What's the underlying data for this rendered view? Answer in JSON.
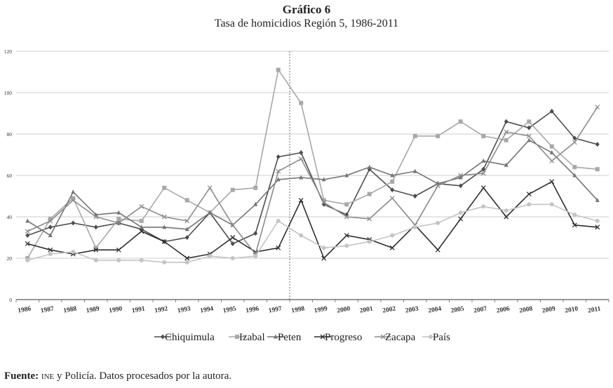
{
  "header": {
    "title": "Gráfico 6",
    "subtitle": "Tasa de homicidios Región 5, 1986-2011"
  },
  "source": {
    "label": "Fuente:",
    "org": "INE",
    "text": " y Policía. Datos procesados por la autora."
  },
  "chart_data": {
    "type": "line",
    "title": "Tasa de homicidios Región 5, 1986-2011",
    "xlabel": "",
    "ylabel": "",
    "ylim": [
      0,
      120
    ],
    "yticks": [
      0,
      20,
      40,
      60,
      80,
      100,
      120
    ],
    "grid": "horizontal",
    "legend_position": "bottom",
    "reference_line_category": "1997",
    "categories": [
      "1986",
      "1987",
      "1988",
      "1989",
      "1990",
      "1991",
      "1992",
      "1993",
      "1994",
      "1995",
      "1996",
      "1997",
      "1998",
      "1999",
      "2000",
      "2001",
      "2002",
      "2003",
      "2004",
      "2005",
      "2007",
      "2006",
      "2008",
      "2009",
      "2010",
      "2011"
    ],
    "series": [
      {
        "name": "Chiquimula",
        "marker": "diamond",
        "color": "#4d4d4d",
        "values": [
          31,
          35,
          37,
          35,
          37,
          34,
          28,
          30,
          42,
          27,
          32,
          69,
          71,
          46,
          41,
          63,
          53,
          50,
          56,
          55,
          63,
          86,
          83,
          91,
          78,
          75
        ]
      },
      {
        "name": "Izabal",
        "marker": "square",
        "color": "#a8a8a8",
        "values": [
          20,
          39,
          49,
          25,
          39,
          38,
          54,
          48,
          42,
          53,
          54,
          111,
          95,
          48,
          46,
          51,
          57,
          79,
          79,
          86,
          79,
          77,
          86,
          74,
          64,
          63
        ]
      },
      {
        "name": "Peten",
        "marker": "triangle",
        "color": "#757575",
        "values": [
          38,
          31,
          52,
          41,
          42,
          35,
          35,
          34,
          42,
          36,
          46,
          58,
          59,
          58,
          60,
          64,
          60,
          62,
          56,
          59,
          67,
          65,
          77,
          71,
          60,
          48
        ]
      },
      {
        "name": "Progreso",
        "marker": "x",
        "color": "#2e2e2e",
        "values": [
          27,
          24,
          22,
          24,
          24,
          33,
          28,
          20,
          22,
          30,
          23,
          25,
          48,
          20,
          31,
          29,
          25,
          36,
          24,
          39,
          54,
          40,
          51,
          57,
          36,
          35
        ]
      },
      {
        "name": "Zacapa",
        "marker": "x",
        "color": "#8c8c8c",
        "values": [
          33,
          38,
          48,
          40,
          37,
          45,
          40,
          38,
          54,
          36,
          22,
          62,
          68,
          47,
          40,
          39,
          49,
          36,
          55,
          60,
          61,
          81,
          79,
          67,
          76,
          93
        ]
      },
      {
        "name": "País",
        "marker": "circle",
        "color": "#c4c4c4",
        "values": [
          19,
          22,
          23,
          19,
          19,
          19,
          18,
          18,
          21,
          20,
          21,
          38,
          31,
          25,
          26,
          28,
          31,
          35,
          37,
          42,
          45,
          43,
          46,
          46,
          41,
          38
        ]
      }
    ]
  }
}
